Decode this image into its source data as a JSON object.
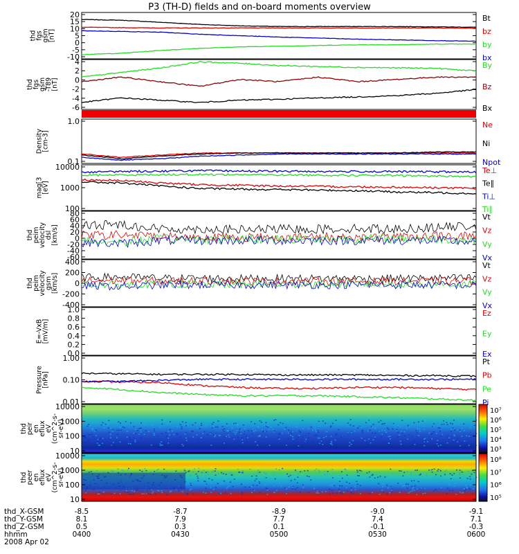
{
  "title": "P3 (TH-D) fields and on-board moments overview",
  "colors": {
    "black": "#000000",
    "red": "#e00000",
    "green": "#22dd22",
    "blue": "#0000cc"
  },
  "chart_data": [
    {
      "type": "line",
      "ylabel": [
        "thd",
        "fgs",
        "gsm",
        "[nT]"
      ],
      "yticks": [
        "20",
        "15",
        "10",
        "5",
        "0",
        "-5",
        "-10"
      ],
      "ylim": [
        -12,
        21
      ],
      "series": [
        {
          "name": "Bt",
          "color": "black",
          "values": [
            16,
            15.5,
            14,
            12.5,
            11.5,
            11,
            11,
            11,
            11,
            10.8,
            10.5
          ]
        },
        {
          "name": "bz",
          "color": "red",
          "values": [
            10.5,
            10.2,
            10,
            10,
            10,
            10,
            10,
            10,
            10,
            10,
            9.8
          ]
        },
        {
          "name": "by",
          "color": "green",
          "values": [
            -9,
            -8,
            -6,
            -4.5,
            -3.5,
            -3,
            -2.5,
            -2,
            -2,
            -1.5,
            -1.5
          ]
        },
        {
          "name": "bx",
          "color": "blue",
          "values": [
            8,
            7.5,
            7,
            5.5,
            4.5,
            3.5,
            2.8,
            2,
            1.5,
            1,
            0.5
          ]
        }
      ]
    },
    {
      "type": "line",
      "ylabel": [
        "thd",
        "fgs",
        "gsm",
        "-T89",
        "[nT]"
      ],
      "yticks": [
        "4",
        "2",
        "0",
        "-2",
        "-4",
        "-6"
      ],
      "ylim": [
        -6.5,
        4.3
      ],
      "series": [
        {
          "name": "By",
          "color": "green",
          "values": [
            0.5,
            1.5,
            2.5,
            3.8,
            3.5,
            3,
            2.8,
            2.6,
            2.5,
            2.4,
            1.8
          ]
        },
        {
          "name": "Bz",
          "color": "#900000",
          "values": [
            -0.5,
            0.5,
            -0.5,
            -1.5,
            0,
            -0.5,
            0.5,
            -0.5,
            0,
            0.5,
            0.5
          ]
        },
        {
          "name": "Bx",
          "color": "black",
          "values": [
            -5,
            -4,
            -4.5,
            -5,
            -4.5,
            -4.3,
            -4,
            -3.8,
            -3.5,
            -3,
            -2.2
          ]
        }
      ]
    },
    {
      "type": "line",
      "log": true,
      "ylabel": [
        "Density",
        "[cm-3]"
      ],
      "yticks": [
        "1.0",
        "0.1"
      ],
      "ylim": [
        0.1,
        1.2
      ],
      "series": [
        {
          "name": "Ne",
          "color": "red",
          "values": [
            0.17,
            0.14,
            0.16,
            0.18,
            0.18,
            0.18,
            0.18,
            0.18,
            0.18,
            0.18,
            0.18
          ]
        },
        {
          "name": "Ni",
          "color": "black",
          "values": [
            0.16,
            0.13,
            0.15,
            0.17,
            0.18,
            0.18,
            0.18,
            0.18,
            0.18,
            0.19,
            0.19
          ]
        },
        {
          "name": "Npot",
          "color": "blue",
          "values": [
            0.14,
            0.12,
            0.13,
            0.15,
            0.16,
            0.17,
            0.17,
            0.17,
            0.17,
            0.17,
            0.17
          ]
        }
      ]
    },
    {
      "type": "line",
      "log": true,
      "ylabel": [
        "mag[3",
        "[eV]"
      ],
      "yticks": [
        "10000",
        "1000",
        "100"
      ],
      "ylim": [
        100,
        12000
      ],
      "series": [
        {
          "name": "Te⊥",
          "color": "red",
          "values": [
            2500,
            2300,
            1800,
            1500,
            1400,
            1300,
            1250,
            1200,
            1150,
            1100,
            1000
          ]
        },
        {
          "name": "Te∥",
          "color": "black",
          "values": [
            2000,
            1800,
            1300,
            1000,
            950,
            900,
            850,
            800,
            700,
            650,
            600
          ]
        },
        {
          "name": "Ti⊥",
          "color": "blue",
          "values": [
            5500,
            6000,
            6200,
            6500,
            6300,
            6100,
            6000,
            6000,
            5900,
            5800,
            5600
          ]
        },
        {
          "name": "Ti∥",
          "color": "green",
          "values": [
            4000,
            4200,
            4300,
            4400,
            4300,
            4200,
            4100,
            4000,
            3900,
            3700,
            3500
          ]
        }
      ]
    },
    {
      "type": "line",
      "ylabel": [
        "thd",
        "peim",
        "velocity",
        "dsl",
        "[km/s]"
      ],
      "yticks": [
        "80",
        "60",
        "40",
        "20",
        "0",
        "-20",
        "-40",
        "-60"
      ],
      "ylim": [
        -62,
        85
      ],
      "series": [
        {
          "name": "Vt",
          "color": "black",
          "values": [
            40,
            45,
            30,
            30,
            28,
            30,
            30,
            32,
            30,
            35,
            40
          ]
        },
        {
          "name": "Vz",
          "color": "red",
          "values": [
            10,
            12,
            8,
            5,
            5,
            5,
            5,
            5,
            5,
            8,
            10
          ]
        },
        {
          "name": "Vy",
          "color": "green",
          "values": [
            -5,
            -10,
            0,
            -2,
            0,
            0,
            0,
            0,
            0,
            0,
            -5
          ]
        },
        {
          "name": "Vx",
          "color": "blue",
          "values": [
            -10,
            -15,
            -5,
            -5,
            -5,
            -5,
            -5,
            -5,
            -5,
            -5,
            -10
          ]
        }
      ]
    },
    {
      "type": "line",
      "ylabel": [
        "thd",
        "peim",
        "velocity",
        "gsm",
        "[km/s]"
      ],
      "yticks": [
        "400",
        "200",
        "0",
        "-200",
        "-400"
      ],
      "ylim": [
        -420,
        420
      ],
      "series": [
        {
          "name": "Vt",
          "color": "black",
          "values": [
            100,
            110,
            90,
            90,
            85,
            85,
            85,
            85,
            85,
            90,
            95
          ]
        },
        {
          "name": "Vz",
          "color": "red",
          "values": [
            40,
            50,
            40,
            40,
            35,
            35,
            35,
            35,
            35,
            40,
            40
          ]
        },
        {
          "name": "Vy",
          "color": "green",
          "values": [
            -20,
            -30,
            -15,
            -20,
            -20,
            -20,
            -15,
            -15,
            -15,
            -20,
            -20
          ]
        },
        {
          "name": "Vx",
          "color": "blue",
          "values": [
            -40,
            -60,
            -30,
            -30,
            -30,
            -30,
            -30,
            -30,
            -30,
            -30,
            -40
          ]
        }
      ]
    },
    {
      "type": "line",
      "ylabel": [
        "E=-VxB",
        "[mV/m]"
      ],
      "yticks": [
        "1.0",
        "0.8",
        "0.6",
        "0.4",
        "0.2",
        "0.0"
      ],
      "ylim": [
        0,
        1
      ],
      "series": [
        {
          "name": "Ez",
          "color": "red",
          "values": []
        },
        {
          "name": "Ey",
          "color": "green",
          "values": []
        },
        {
          "name": "Ex",
          "color": "blue",
          "values": []
        }
      ]
    },
    {
      "type": "line",
      "log": true,
      "ylabel": [
        "Pressure",
        "[nPa]"
      ],
      "yticks": [
        "1.00",
        "0.10",
        "0.01"
      ],
      "ylim": [
        0.01,
        1.1
      ],
      "series": [
        {
          "name": "Pt",
          "color": "black",
          "values": [
            0.2,
            0.19,
            0.18,
            0.18,
            0.18,
            0.17,
            0.17,
            0.17,
            0.16,
            0.16,
            0.15
          ]
        },
        {
          "name": "Pb",
          "color": "red",
          "values": [
            0.09,
            0.085,
            0.08,
            0.06,
            0.05,
            0.045,
            0.045,
            0.05,
            0.05,
            0.045,
            0.04
          ]
        },
        {
          "name": "Pe",
          "color": "green",
          "values": [
            0.05,
            0.04,
            0.03,
            0.025,
            0.022,
            0.022,
            0.022,
            0.02,
            0.018,
            0.016,
            0.014
          ]
        },
        {
          "name": "Pi",
          "color": "blue",
          "values": [
            0.09,
            0.09,
            0.1,
            0.11,
            0.11,
            0.11,
            0.11,
            0.11,
            0.11,
            0.11,
            0.11
          ]
        }
      ]
    },
    {
      "type": "heatmap",
      "ylabel": [
        "thd",
        "peir",
        "en",
        "eflux",
        "eV",
        "(cm^2-s-",
        "sr-eV)"
      ],
      "yticks": [
        "10000",
        "1000",
        "100",
        "10"
      ],
      "colorbar_labels": [
        "10⁷",
        "10⁶",
        "10⁵",
        "10⁴",
        "10³"
      ]
    },
    {
      "type": "heatmap",
      "ylabel": [
        "thd",
        "peer",
        "en",
        "eflux",
        "eV",
        "(cm^2-s-",
        "sr-eV)"
      ],
      "yticks": [
        "10000",
        "1000",
        "100",
        "10"
      ],
      "colorbar_labels": [
        "10⁸",
        "10⁷",
        "10⁶",
        "10⁵"
      ]
    }
  ],
  "xaxis": {
    "ticks": [
      {
        "X": "-8.5",
        "Y": "8.1",
        "Z": "0.5",
        "hhmm": "0400"
      },
      {
        "X": "-8.7",
        "Y": "7.9",
        "Z": "0.3",
        "hhmm": "0430"
      },
      {
        "X": "-8.9",
        "Y": "7.7",
        "Z": "0.1",
        "hhmm": "0500"
      },
      {
        "X": "-9.0",
        "Y": "7.4",
        "Z": "-0.1",
        "hhmm": "0530"
      },
      {
        "X": "-9.1",
        "Y": "7.1",
        "Z": "-0.3",
        "hhmm": "0600"
      }
    ],
    "row_labels": [
      "thd_X-GSM",
      "thd_Y-GSM",
      "thd_Z-GSM",
      "hhmm"
    ],
    "date": "2008 Apr 02"
  }
}
